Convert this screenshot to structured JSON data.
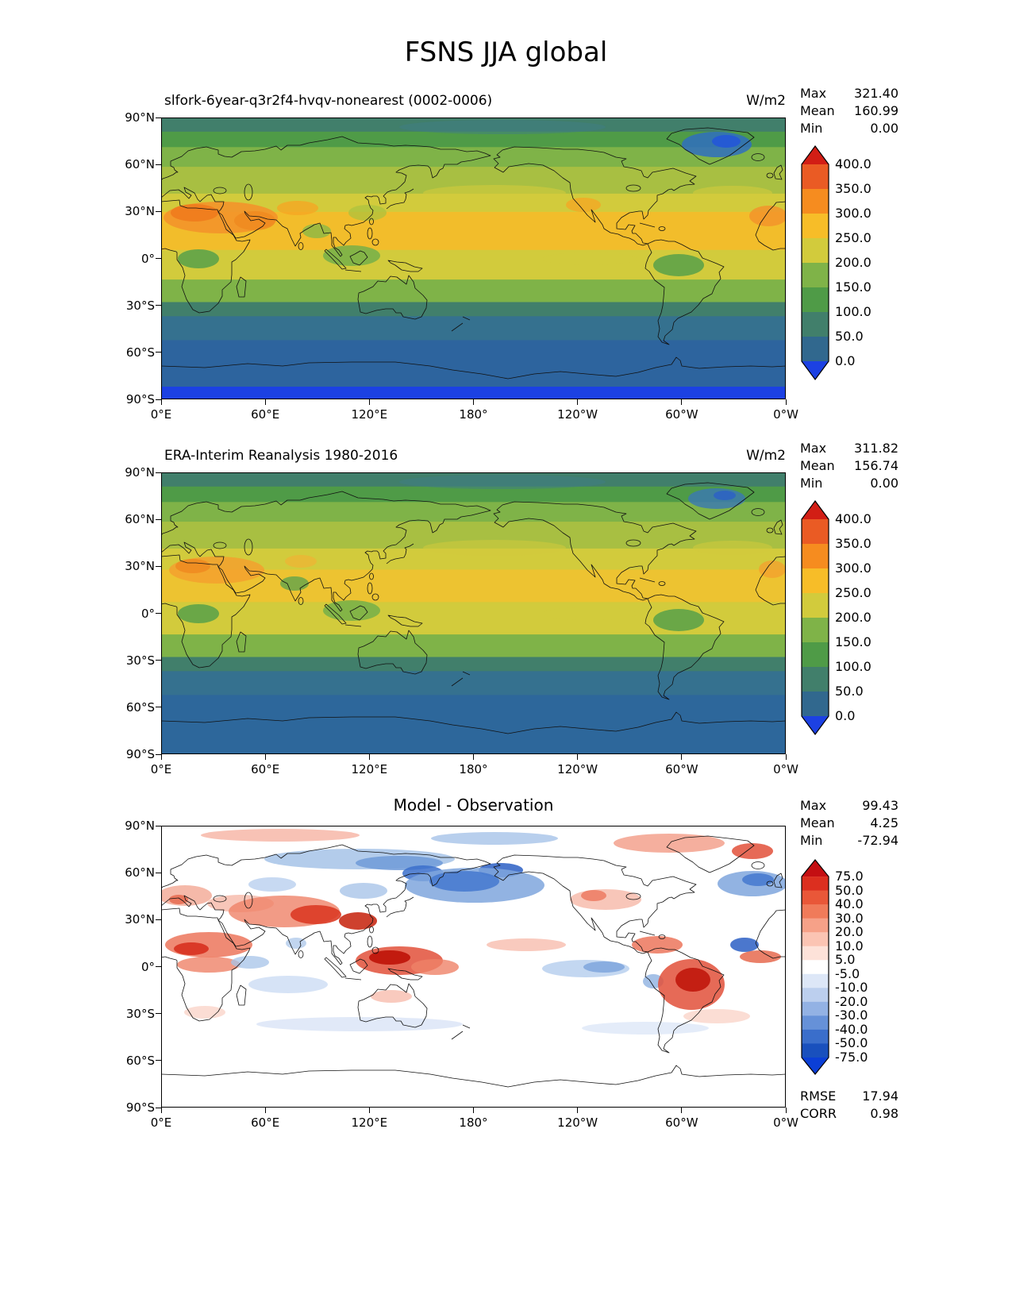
{
  "figure": {
    "title": "FSNS JJA global"
  },
  "labels": {
    "max": "Max",
    "mean": "Mean",
    "min": "Min",
    "rmse": "RMSE",
    "corr": "CORR"
  },
  "axes": {
    "lat_ticks": [
      "90°N",
      "60°N",
      "30°N",
      "0°",
      "30°S",
      "60°S",
      "90°S"
    ],
    "lon_ticks": [
      "0°E",
      "60°E",
      "120°E",
      "180°",
      "120°W",
      "60°W",
      "0°W"
    ]
  },
  "chart_data": [
    {
      "type": "heatmap",
      "panel": "model",
      "projection": "global lat-lon map",
      "title": "slfork-6year-q3r2f4-hvqv-nonearest (0002-0006)",
      "units": "W/m2",
      "stats": {
        "max": "321.40",
        "mean": "160.99",
        "min": "0.00"
      },
      "colorbar": {
        "levels": [
          "400.0",
          "350.0",
          "300.0",
          "250.0",
          "200.0",
          "150.0",
          "100.0",
          "50.0",
          "0.0"
        ],
        "segment_colors_top_to_bottom": [
          "#ea5b24",
          "#f68c1f",
          "#f7bd28",
          "#d2cb3c",
          "#7fb348",
          "#4f9b47",
          "#417f6b",
          "#31688e"
        ],
        "arrow_top": "#d21e15",
        "arrow_bottom": "#1c41e3"
      }
    },
    {
      "type": "heatmap",
      "panel": "observation",
      "projection": "global lat-lon map",
      "title": "ERA-Interim Reanalysis 1980-2016",
      "units": "W/m2",
      "stats": {
        "max": "311.82",
        "mean": "156.74",
        "min": "0.00"
      },
      "colorbar": {
        "levels": [
          "400.0",
          "350.0",
          "300.0",
          "250.0",
          "200.0",
          "150.0",
          "100.0",
          "50.0",
          "0.0"
        ],
        "segment_colors_top_to_bottom": [
          "#ea5b24",
          "#f68c1f",
          "#f7bd28",
          "#d2cb3c",
          "#7fb348",
          "#4f9b47",
          "#417f6b",
          "#31688e"
        ],
        "arrow_top": "#d21e15",
        "arrow_bottom": "#1c41e3"
      }
    },
    {
      "type": "heatmap",
      "panel": "difference",
      "projection": "global lat-lon map",
      "title": "Model - Observation",
      "stats": {
        "max": "99.43",
        "mean": "4.25",
        "min": "-72.94"
      },
      "rmse": "17.94",
      "corr": "0.98",
      "colorbar": {
        "levels": [
          "75.0",
          "50.0",
          "40.0",
          "30.0",
          "20.0",
          "10.0",
          "5.0",
          "-5.0",
          "-10.0",
          "-20.0",
          "-30.0",
          "-40.0",
          "-50.0",
          "-75.0"
        ],
        "segment_colors_top_to_bottom": [
          "#dc2f1f",
          "#e95738",
          "#f07b5a",
          "#f6a188",
          "#fbc4b3",
          "#fde2d9",
          "#ffffff",
          "#dde7f7",
          "#bccfee",
          "#93b2e4",
          "#6691d8",
          "#3a6ecb",
          "#1950bd"
        ],
        "arrow_top": "#c40f12",
        "arrow_bottom": "#0b3fd6"
      }
    }
  ]
}
